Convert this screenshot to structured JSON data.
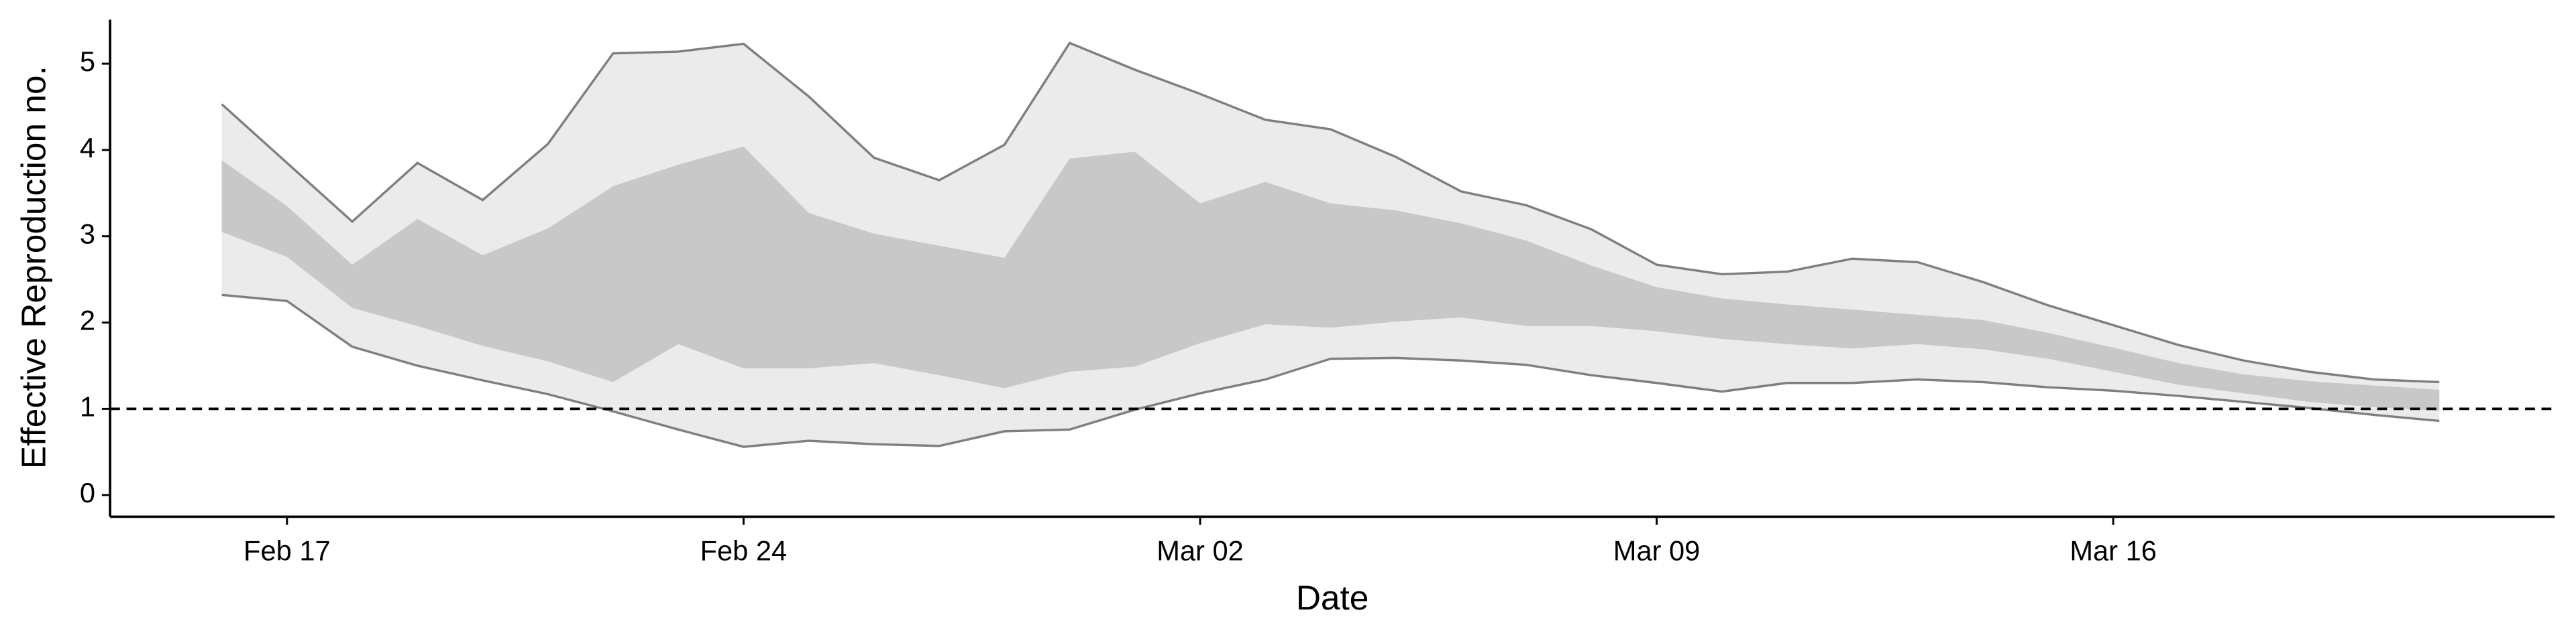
{
  "chart_data": {
    "type": "band",
    "x_label": "Date",
    "y_label": "Effective Reproduction no.",
    "x": [
      "Feb 16",
      "Feb 17",
      "Feb 18",
      "Feb 19",
      "Feb 20",
      "Feb 21",
      "Feb 22",
      "Feb 23",
      "Feb 24",
      "Feb 25",
      "Feb 26",
      "Feb 27",
      "Feb 28",
      "Feb 29",
      "Mar 01",
      "Mar 02",
      "Mar 03",
      "Mar 04",
      "Mar 05",
      "Mar 06",
      "Mar 07",
      "Mar 08",
      "Mar 09",
      "Mar 10",
      "Mar 11",
      "Mar 12",
      "Mar 13",
      "Mar 14",
      "Mar 15",
      "Mar 16",
      "Mar 17",
      "Mar 18",
      "Mar 19",
      "Mar 20",
      "Mar 21"
    ],
    "xticks": [
      "Feb 17",
      "Feb 24",
      "Mar 02",
      "Mar 09",
      "Mar 16"
    ],
    "bands": [
      {
        "color": "#ebebeb",
        "edge_color": "#7f7f7f",
        "upper": [
          4.53,
          3.85,
          3.17,
          3.85,
          3.42,
          4.07,
          5.12,
          5.14,
          5.23,
          4.62,
          3.91,
          3.65,
          4.06,
          5.24,
          4.93,
          4.65,
          4.35,
          4.24,
          3.92,
          3.52,
          3.36,
          3.08,
          2.67,
          2.56,
          2.59,
          2.74,
          2.7,
          2.47,
          2.2,
          1.97,
          1.74,
          1.56,
          1.43,
          1.34,
          1.31
        ],
        "lower": [
          2.32,
          2.25,
          1.72,
          1.5,
          1.33,
          1.17,
          0.97,
          0.76,
          0.56,
          0.63,
          0.59,
          0.57,
          0.74,
          0.76,
          0.99,
          1.18,
          1.34,
          1.58,
          1.59,
          1.56,
          1.51,
          1.39,
          1.3,
          1.2,
          1.3,
          1.3,
          1.34,
          1.31,
          1.25,
          1.21,
          1.15,
          1.08,
          1.01,
          0.93,
          0.86
        ]
      },
      {
        "color": "#c8c8c8",
        "upper": [
          3.88,
          3.35,
          2.67,
          3.2,
          2.78,
          3.09,
          3.58,
          3.83,
          4.04,
          3.27,
          3.03,
          2.89,
          2.75,
          3.9,
          3.98,
          3.38,
          3.63,
          3.38,
          3.3,
          3.15,
          2.95,
          2.66,
          2.41,
          2.28,
          2.21,
          2.15,
          2.09,
          2.03,
          1.88,
          1.71,
          1.53,
          1.4,
          1.32,
          1.27,
          1.22
        ],
        "lower": [
          3.05,
          2.76,
          2.17,
          1.96,
          1.73,
          1.55,
          1.31,
          1.75,
          1.47,
          1.47,
          1.53,
          1.39,
          1.24,
          1.43,
          1.49,
          1.76,
          1.98,
          1.94,
          2.01,
          2.06,
          1.96,
          1.96,
          1.9,
          1.81,
          1.75,
          1.7,
          1.75,
          1.69,
          1.58,
          1.43,
          1.28,
          1.18,
          1.08,
          1.02,
          0.98
        ]
      }
    ],
    "reference_line": {
      "value": 1,
      "style": "dashed",
      "color": "#000000"
    },
    "ylim": [
      -0.25,
      5.51
    ],
    "yticks": [
      0,
      1,
      2,
      3,
      4,
      5
    ]
  }
}
